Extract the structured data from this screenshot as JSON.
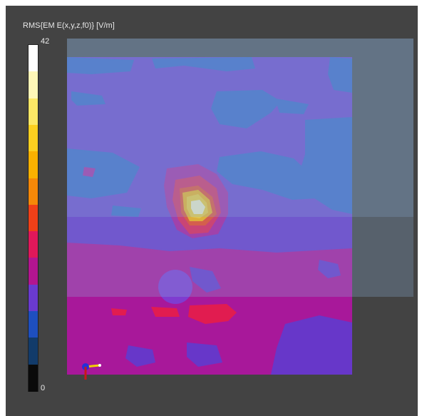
{
  "colorbar": {
    "title": "RMS{EM E(x,y,z,f0)} [V/m]",
    "max_label": "42",
    "min_label": "0",
    "colors": [
      "#0a0a0a",
      "#123b6a",
      "#1e4fbf",
      "#6a3ad0",
      "#b31590",
      "#e0185a",
      "#f04018",
      "#f58808",
      "#fbb100",
      "#fdd020",
      "#fde866",
      "#fff7b8",
      "#ffffff"
    ]
  },
  "colors": {
    "background": "#434343",
    "overlay_box": "#8cb0d8",
    "field_blue": "#2f5cc4",
    "field_violet": "#6737c9",
    "field_magenta": "#a8189a",
    "field_red": "#e11c50",
    "hotspot_core": "#fff6c0"
  }
}
